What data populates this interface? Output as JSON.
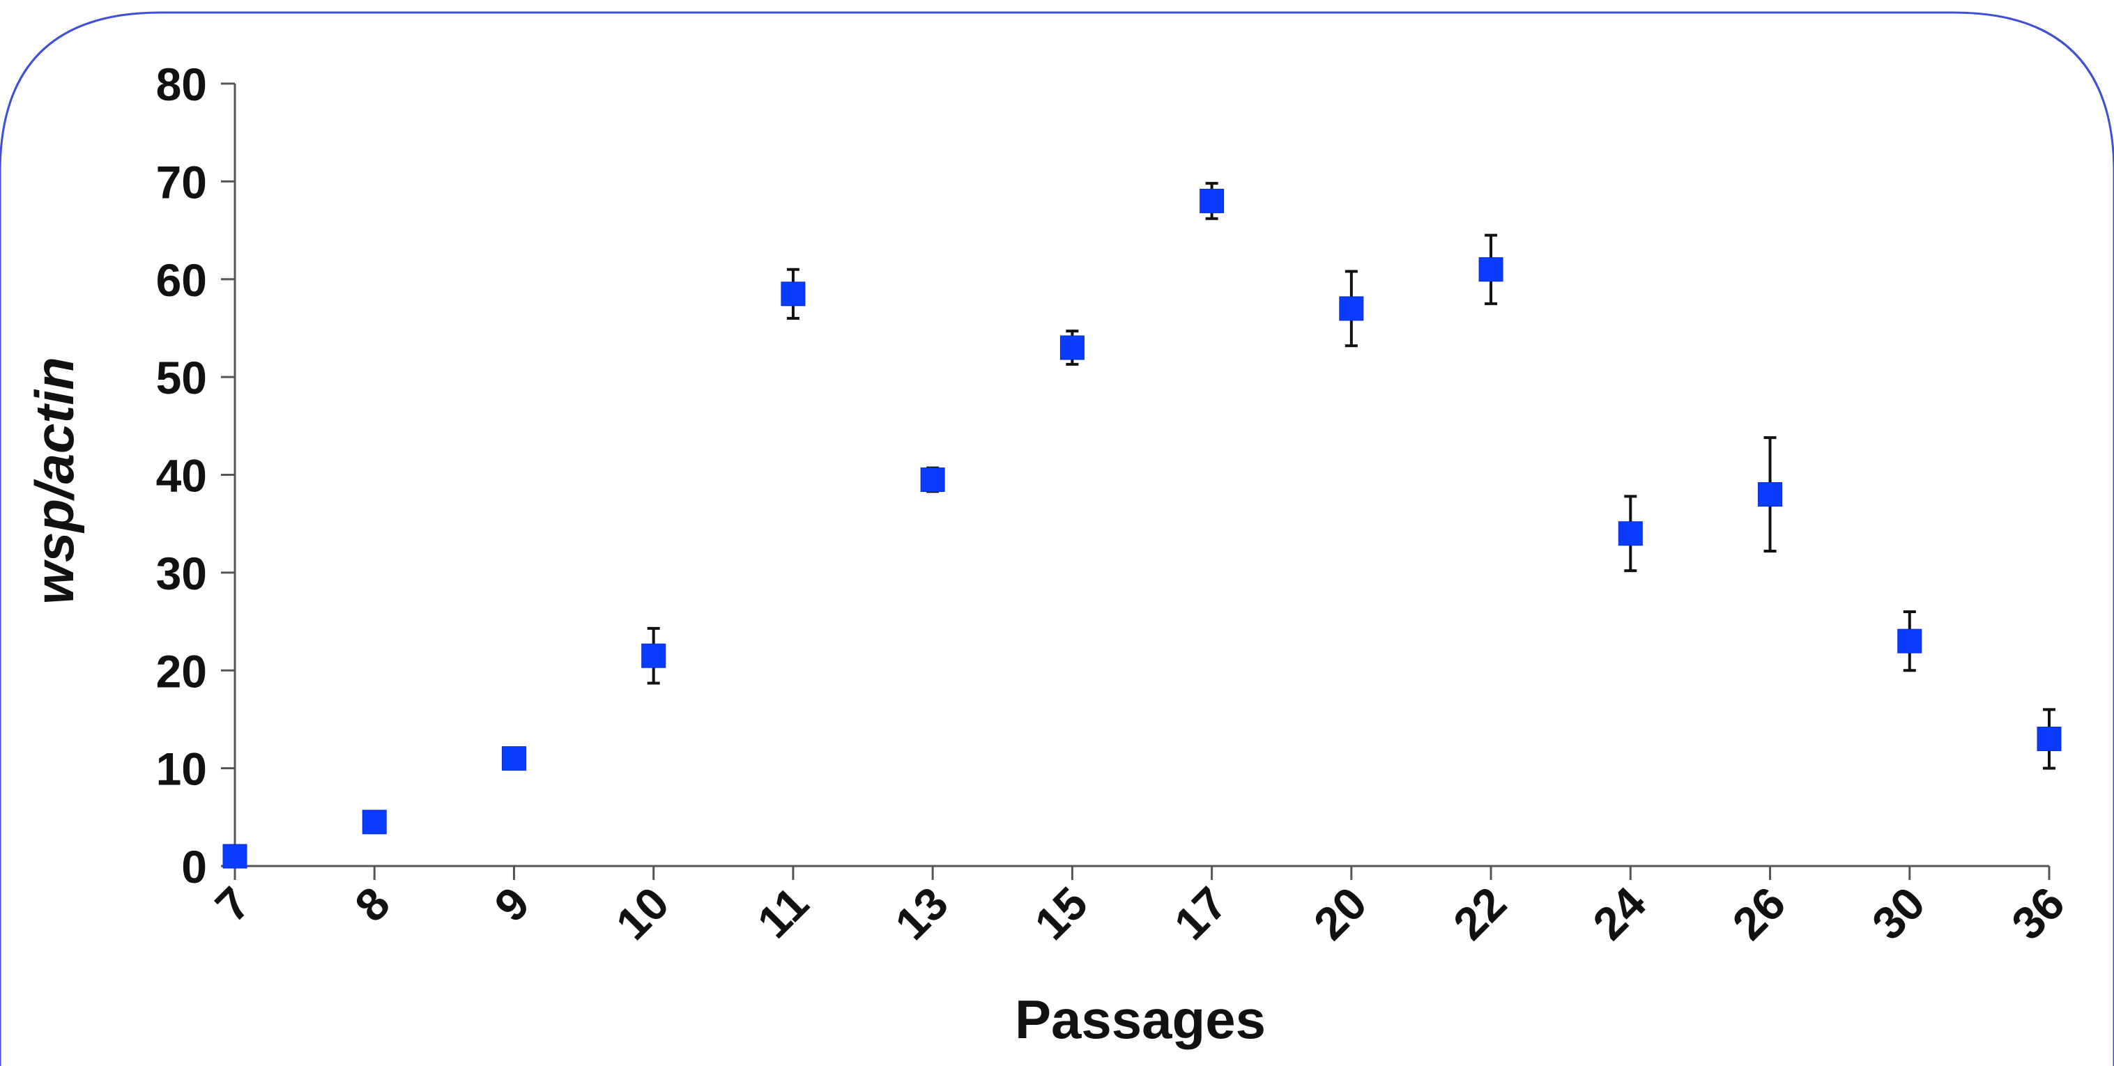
{
  "chart_data": {
    "type": "scatter",
    "title": "",
    "xlabel": "Passages",
    "ylabel": "wsp/actin",
    "ylim": [
      0,
      80
    ],
    "yticks": [
      0,
      10,
      20,
      30,
      40,
      50,
      60,
      70,
      80
    ],
    "categories": [
      "7",
      "8",
      "9",
      "10",
      "11",
      "13",
      "15",
      "17",
      "20",
      "22",
      "24",
      "26",
      "30",
      "36"
    ],
    "series": [
      {
        "values": [
          1,
          4.5,
          11,
          21.5,
          58.5,
          39.5,
          53,
          68,
          57,
          61,
          34,
          38,
          23,
          13
        ],
        "error": [
          0,
          0,
          0,
          2.8,
          2.5,
          1.2,
          1.7,
          1.8,
          3.8,
          3.5,
          3.8,
          5.8,
          3.0,
          3.0
        ]
      }
    ],
    "grid": false,
    "legend": "none",
    "colors": {
      "marker": "#0a3cff",
      "axis": "#555555",
      "text": "#111111",
      "frame": "#3f4fd6"
    }
  }
}
